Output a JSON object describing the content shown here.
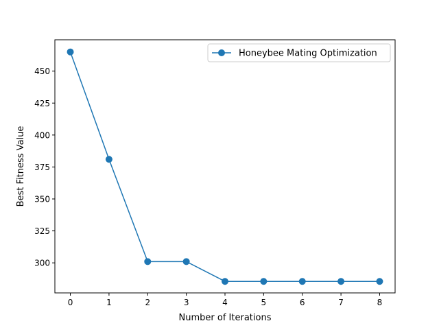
{
  "chart_data": {
    "type": "line",
    "title": "",
    "xlabel": "Number of Iterations",
    "ylabel": "Best Fitness Value",
    "x": [
      0,
      1,
      2,
      3,
      4,
      5,
      6,
      7,
      8
    ],
    "series": [
      {
        "name": "Honeybee Mating Optimization",
        "values": [
          465,
          381,
          301,
          301,
          285.5,
          285.5,
          285.5,
          285.5,
          285.5
        ],
        "color": "#1f77b4",
        "marker": "circle"
      }
    ],
    "xlim": [
      -0.4,
      8.4
    ],
    "ylim": [
      276.5,
      474.5
    ],
    "x_ticks": [
      0,
      1,
      2,
      3,
      4,
      5,
      6,
      7,
      8
    ],
    "y_ticks": [
      300,
      325,
      350,
      375,
      400,
      425,
      450
    ],
    "grid": false,
    "legend_position": "top-right"
  }
}
